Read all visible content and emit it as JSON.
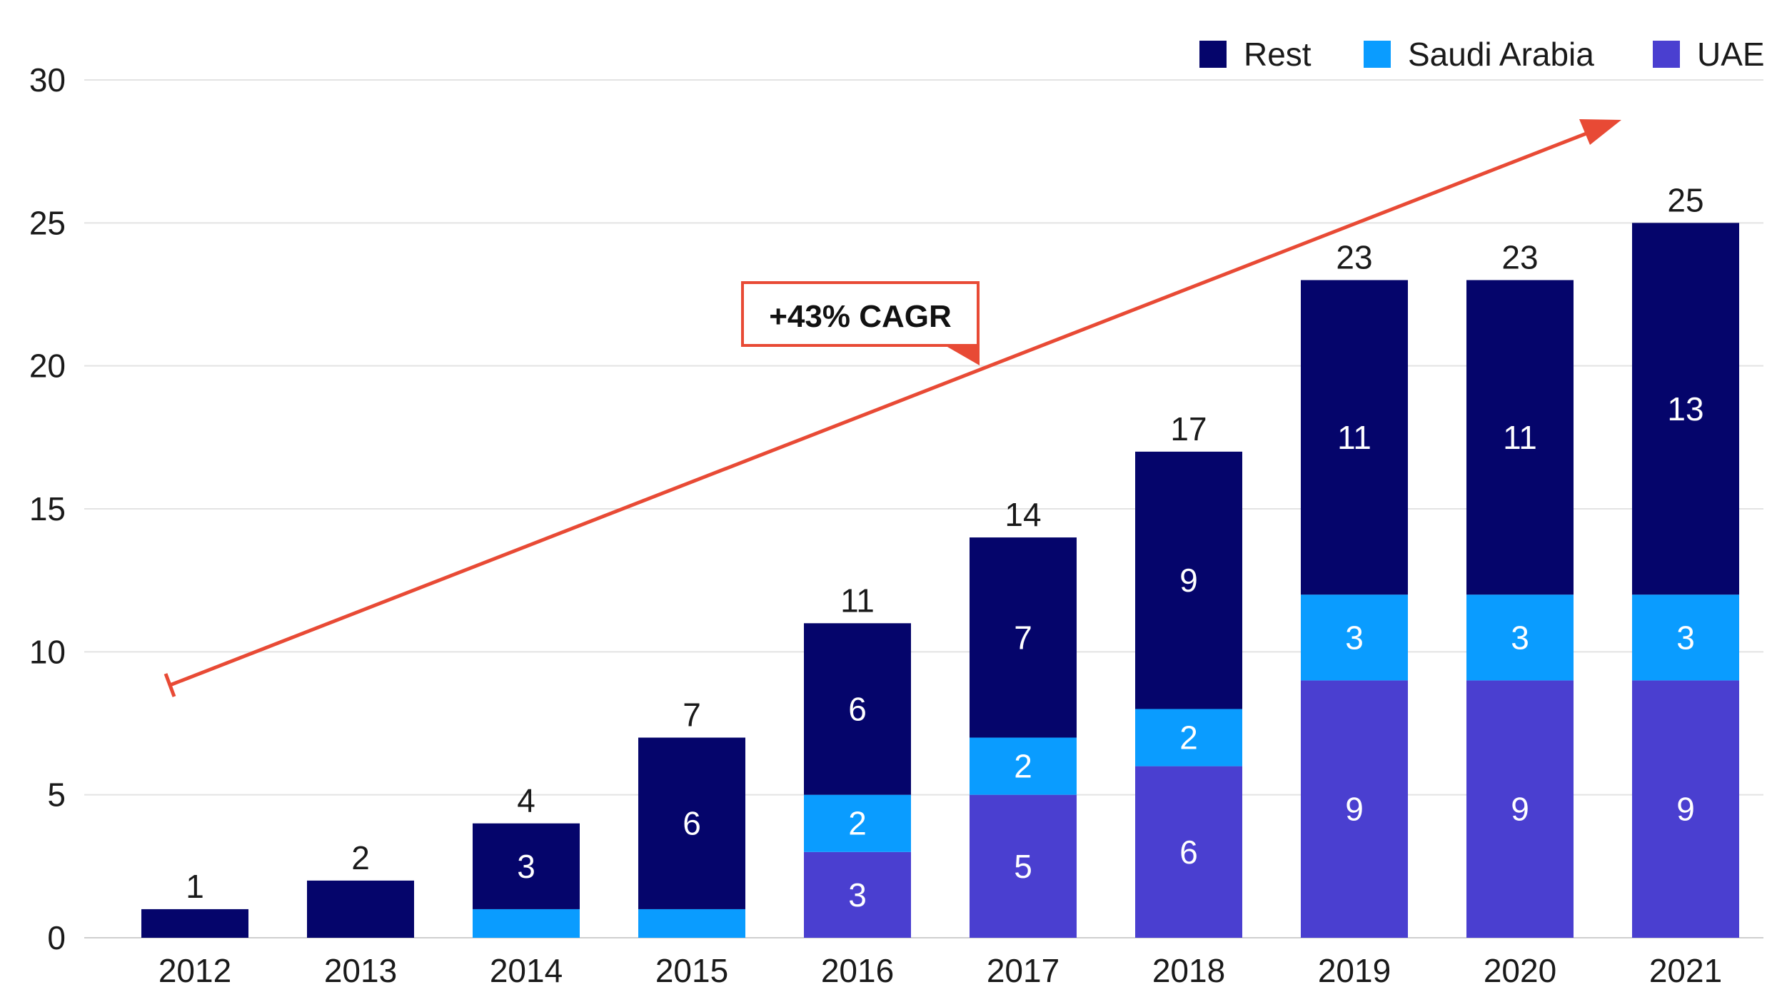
{
  "chart_data": {
    "type": "bar",
    "stacked": true,
    "categories": [
      "2012",
      "2013",
      "2014",
      "2015",
      "2016",
      "2017",
      "2018",
      "2019",
      "2020",
      "2021"
    ],
    "series": [
      {
        "name": "UAE",
        "color": "#4a3fd0",
        "values": [
          0,
          0,
          0,
          0,
          3,
          5,
          6,
          9,
          9,
          9
        ],
        "labels": [
          "",
          "",
          "",
          "",
          "3",
          "5",
          "6",
          "9",
          "9",
          "9"
        ]
      },
      {
        "name": "Saudi Arabia",
        "color": "#0a9cff",
        "values": [
          0,
          0,
          1,
          1,
          2,
          2,
          2,
          3,
          3,
          3
        ],
        "labels": [
          "",
          "",
          "",
          "",
          "2",
          "2",
          "2",
          "3",
          "3",
          "3"
        ]
      },
      {
        "name": "Rest",
        "color": "#05056b",
        "values": [
          1,
          2,
          3,
          6,
          6,
          7,
          9,
          11,
          11,
          13
        ],
        "labels": [
          "",
          "",
          "3",
          "6",
          "6",
          "7",
          "9",
          "11",
          "11",
          "13"
        ]
      }
    ],
    "totals": [
      1,
      2,
      4,
      7,
      11,
      14,
      17,
      23,
      23,
      25
    ],
    "total_labels": [
      "1",
      "2",
      "4",
      "7",
      "11",
      "14",
      "17",
      "23",
      "23",
      "25"
    ],
    "legend": [
      "Rest",
      "Saudi Arabia",
      "UAE"
    ],
    "legend_position": "top-right",
    "ylim": [
      0,
      30
    ],
    "yticks": [
      "0",
      "5",
      "10",
      "15",
      "20",
      "25",
      "30"
    ],
    "grid": true,
    "title": "",
    "xlabel": "",
    "ylabel": "",
    "annotation": {
      "text": "+43% CAGR",
      "color": "#e84a35"
    }
  }
}
